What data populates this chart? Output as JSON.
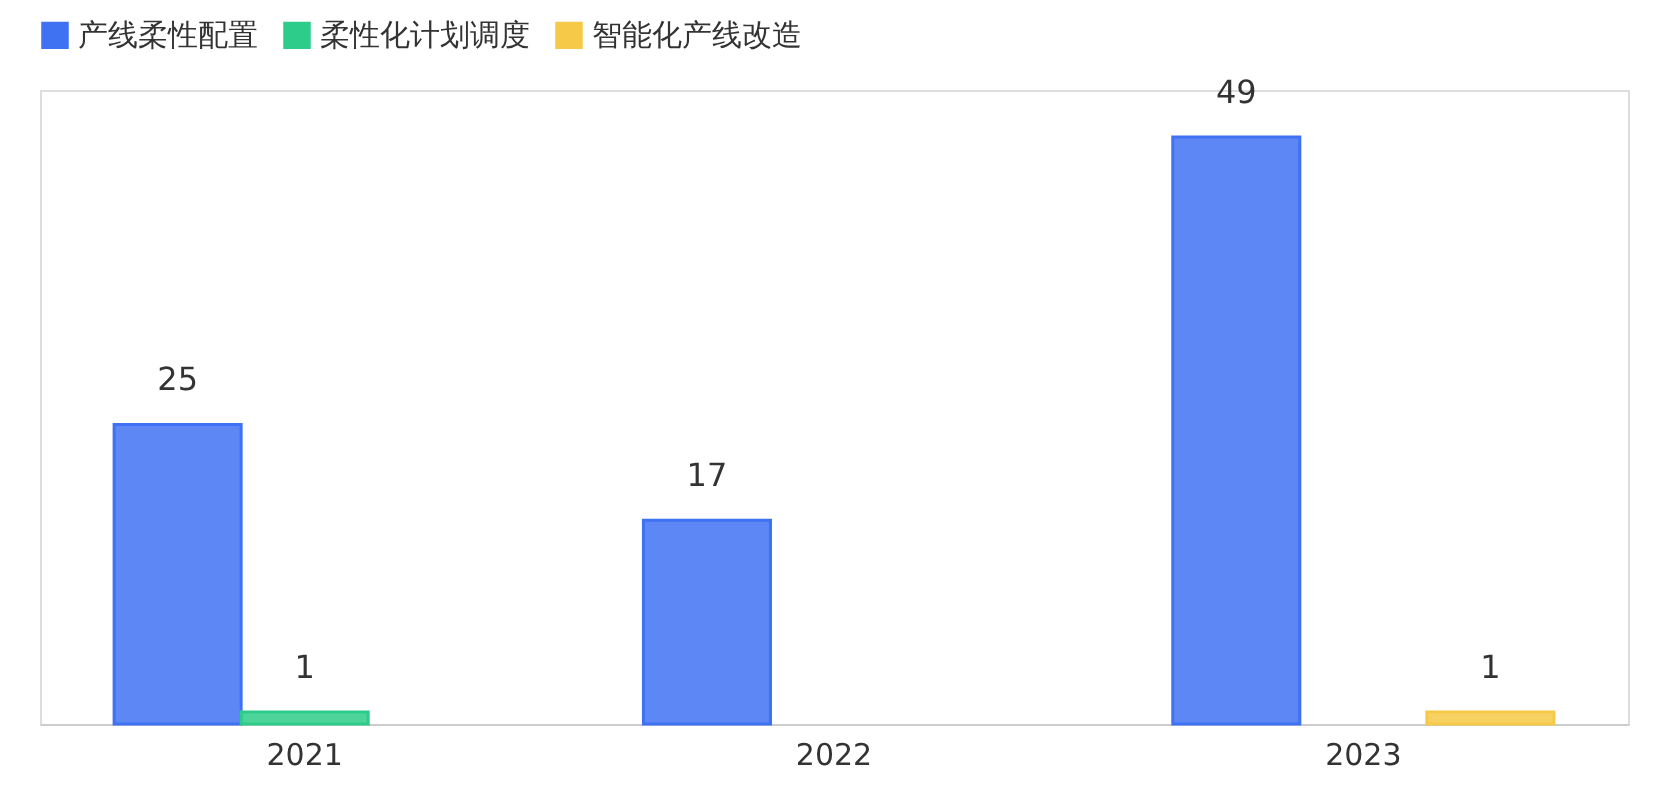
{
  "chart_data": {
    "type": "bar",
    "categories": [
      "2021",
      "2022",
      "2023"
    ],
    "series": [
      {
        "name": "产线柔性配置",
        "color": "#3f72f2",
        "values": [
          25,
          17,
          49
        ]
      },
      {
        "name": "柔性化计划调度",
        "color": "#2ecc8a",
        "values": [
          1,
          null,
          null
        ]
      },
      {
        "name": "智能化产线改造",
        "color": "#f7c948",
        "values": [
          null,
          null,
          1
        ]
      }
    ],
    "data_labels": true,
    "legend": "top",
    "grid": false
  }
}
